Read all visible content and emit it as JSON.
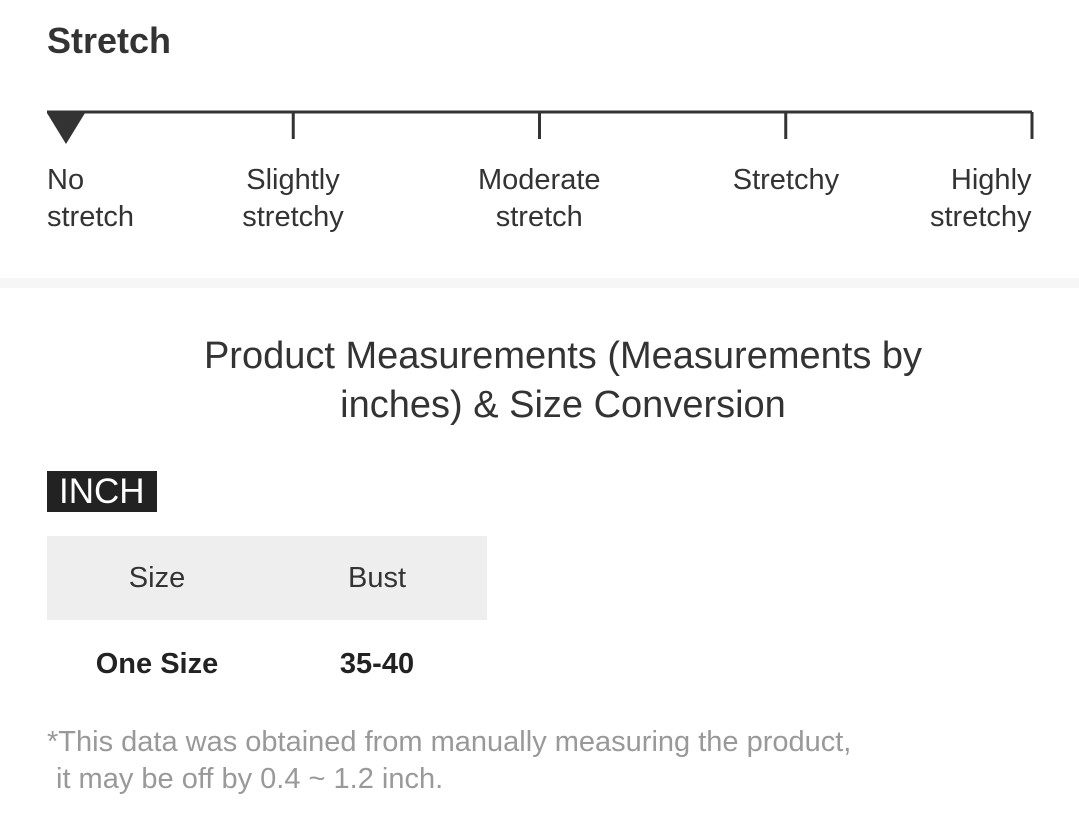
{
  "stretch": {
    "title": "Stretch",
    "levels": [
      "No stretch",
      "Slightly stretchy",
      "Moderate stretch",
      "Stretchy",
      "Highly stretchy"
    ],
    "selected": 0
  },
  "measurements": {
    "title": "Product Measurements (Measurements by inches) & Size Conversion",
    "unit_tab": "INCH",
    "table": {
      "header": [
        "Size",
        "Bust"
      ],
      "rows": [
        [
          "One Size",
          "35-40"
        ]
      ]
    },
    "note": [
      "*This data was obtained from manually measuring the product,",
      "it may be off by 0.4 ~ 1.2 inch."
    ]
  }
}
